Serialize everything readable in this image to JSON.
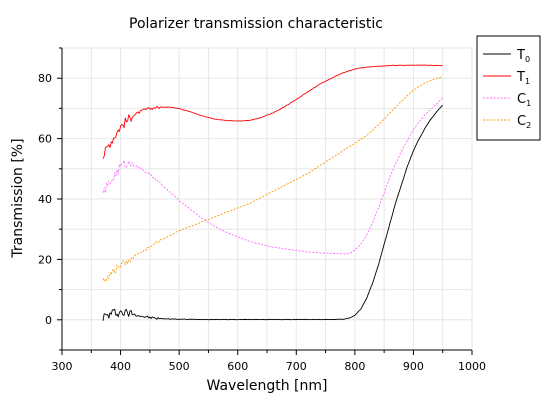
{
  "chart_data": {
    "type": "line",
    "title": "Polarizer transmission characteristic",
    "xlabel": "Wavelength [nm]",
    "ylabel": "Transmission [%]",
    "xlim": [
      300,
      1000
    ],
    "ylim": [
      -10,
      90
    ],
    "xticks": [
      300,
      400,
      500,
      600,
      700,
      800,
      900,
      1000
    ],
    "yticks": [
      0,
      20,
      40,
      60,
      80
    ],
    "grid": true,
    "legend_position": "outside-right-top",
    "series": [
      {
        "name": "T",
        "subscript": "0",
        "color": "#000000",
        "dash": "",
        "noise": 1.0,
        "x": [
          370,
          380,
          390,
          400,
          420,
          440,
          460,
          480,
          500,
          550,
          600,
          650,
          700,
          750,
          780,
          790,
          800,
          810,
          820,
          830,
          840,
          850,
          860,
          870,
          880,
          890,
          900,
          910,
          920,
          930,
          940,
          950
        ],
        "y": [
          1.0,
          1.5,
          2.5,
          2.5,
          2.0,
          1.0,
          0.5,
          0.3,
          0.2,
          0.1,
          0.1,
          0.1,
          0.1,
          0.1,
          0.2,
          0.5,
          1.5,
          3.5,
          7.0,
          12.0,
          18.0,
          25.0,
          32.0,
          39.0,
          45.0,
          51.0,
          56.0,
          60.0,
          63.5,
          66.5,
          69.0,
          71.0
        ]
      },
      {
        "name": "T",
        "subscript": "1",
        "color": "#ff0000",
        "dash": "",
        "noise": 1.0,
        "x": [
          370,
          380,
          390,
          400,
          420,
          440,
          460,
          480,
          500,
          520,
          540,
          560,
          580,
          600,
          620,
          640,
          660,
          680,
          700,
          720,
          740,
          760,
          780,
          800,
          820,
          840,
          860,
          880,
          900,
          920,
          940,
          950
        ],
        "y": [
          54.0,
          58.0,
          61.0,
          64.0,
          67.5,
          69.5,
          70.3,
          70.5,
          70.0,
          68.8,
          67.5,
          66.5,
          66.0,
          65.8,
          66.0,
          67.0,
          68.5,
          70.5,
          73.0,
          75.5,
          78.0,
          80.0,
          81.8,
          83.0,
          83.7,
          84.0,
          84.2,
          84.3,
          84.3,
          84.3,
          84.2,
          84.2
        ]
      },
      {
        "name": "C",
        "subscript": "1",
        "color": "#ff66ff",
        "dash": "2,1.5",
        "noise": 1.0,
        "x": [
          370,
          380,
          390,
          400,
          410,
          420,
          440,
          460,
          480,
          500,
          520,
          540,
          560,
          580,
          600,
          620,
          640,
          660,
          680,
          700,
          720,
          740,
          760,
          780,
          790,
          800,
          810,
          820,
          830,
          840,
          850,
          860,
          880,
          900,
          920,
          940,
          950
        ],
        "y": [
          42.0,
          45.0,
          48.0,
          51.0,
          52.0,
          51.5,
          49.5,
          46.5,
          43.0,
          39.5,
          36.5,
          33.5,
          31.0,
          29.0,
          27.5,
          26.0,
          25.0,
          24.0,
          23.5,
          23.0,
          22.5,
          22.2,
          22.0,
          21.8,
          22.0,
          23.0,
          25.0,
          28.0,
          32.0,
          37.0,
          42.0,
          47.5,
          56.0,
          63.0,
          68.0,
          71.5,
          73.5
        ]
      },
      {
        "name": "C",
        "subscript": "2",
        "color": "#ff9900",
        "dash": "2,1.5",
        "noise": 1.0,
        "x": [
          370,
          380,
          390,
          400,
          420,
          440,
          460,
          480,
          500,
          520,
          540,
          560,
          580,
          600,
          620,
          640,
          660,
          680,
          700,
          720,
          740,
          760,
          780,
          800,
          820,
          840,
          860,
          880,
          900,
          920,
          940,
          950
        ],
        "y": [
          13.0,
          15.0,
          16.5,
          18.0,
          20.5,
          23.0,
          25.5,
          27.5,
          29.5,
          31.0,
          32.5,
          34.0,
          35.5,
          37.0,
          38.5,
          40.5,
          42.5,
          44.5,
          46.5,
          48.5,
          51.0,
          53.5,
          56.0,
          58.5,
          61.0,
          64.5,
          68.5,
          72.5,
          76.0,
          78.5,
          80.0,
          80.5
        ]
      }
    ]
  }
}
